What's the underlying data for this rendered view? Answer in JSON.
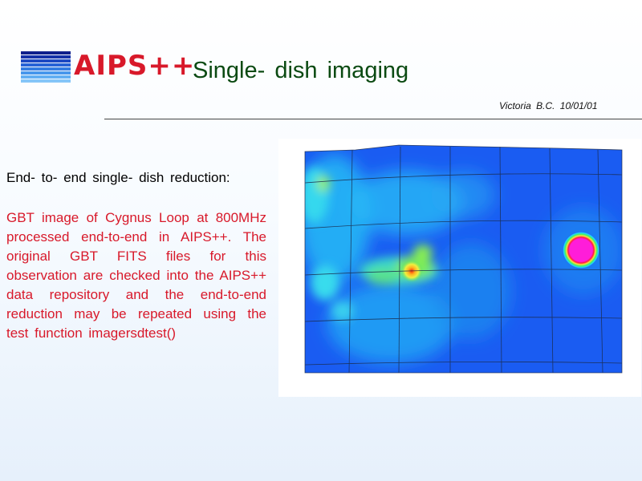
{
  "header": {
    "logo_text": "AIPS++",
    "title": "Single- dish  imaging",
    "author": "Victoria  B.C.  10/01/01"
  },
  "content": {
    "heading": "End- to- end  single- dish  reduction:",
    "paragraph": "GBT image of Cygnus Loop at 800MHz processed end-to-end in AIPS++. The original GBT FITS files for this observation are checked into the AIPS++ data repository and the end-to-end reduction may be repeated using the test function imagersdtest()"
  },
  "colors": {
    "logo_red": "#d8192a",
    "title_green": "#0b4a12",
    "body_red": "#d8192a",
    "map_background": "#1a5cf2"
  },
  "icons": [
    "aips-logo-bars-icon"
  ]
}
